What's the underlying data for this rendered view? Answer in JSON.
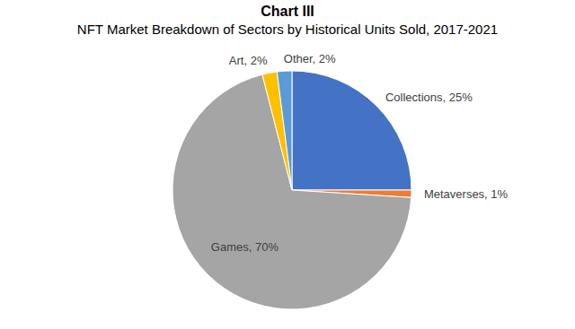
{
  "chart_data": {
    "type": "pie",
    "title": "Chart III",
    "subtitle": "NFT Market Breakdown of Sectors by Historical Units Sold, 2017-2021",
    "categories": [
      "Collections",
      "Metaverses",
      "Games",
      "Art",
      "Other"
    ],
    "values": [
      25,
      1,
      70,
      2,
      2
    ],
    "value_labels": [
      "Collections, 25%",
      "Metaverses, 1%",
      "Games, 70%",
      "Art, 2%",
      "Other, 2%"
    ],
    "colors": [
      "#4472c4",
      "#ed7d31",
      "#a5a5a5",
      "#ffc000",
      "#5b9bd5"
    ],
    "data_labels": true
  }
}
